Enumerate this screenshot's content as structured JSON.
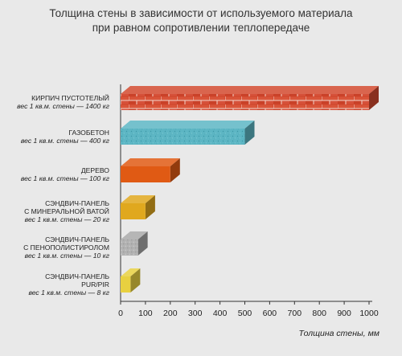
{
  "title": {
    "line1": "Толщина стены в зависимости от используемого материала",
    "line2": "при равном сопротивлении теплопередаче"
  },
  "chart_data": {
    "type": "bar",
    "orientation": "horizontal",
    "title": "Толщина стены в зависимости от используемого материала при равном сопротивлении теплопередаче",
    "xlabel": "Толщина стены, мм",
    "ylabel": "",
    "xlim": [
      0,
      1000
    ],
    "xticks": [
      "0",
      "100",
      "200",
      "300",
      "400",
      "500",
      "600",
      "700",
      "800",
      "900",
      "1000"
    ],
    "categories": [
      {
        "lines": [
          "КИРПИЧ ПУСТОТЕЛЫЙ"
        ],
        "note": "вес 1 кв.м. стены — 1400 кг",
        "value": 1000,
        "color": "#d24a2f",
        "fill": "brick"
      },
      {
        "lines": [
          "ГАЗОБЕТОН"
        ],
        "note": "вес 1 кв.м. стены — 400 кг",
        "value": 500,
        "color": "#5db6c4",
        "fill": "aerated"
      },
      {
        "lines": [
          "ДЕРЕВО"
        ],
        "note": "вес 1 кв.м. стены — 100 кг",
        "value": 200,
        "color": "#e05a14",
        "fill": "wood"
      },
      {
        "lines": [
          "СЭНДВИЧ-ПАНЕЛЬ",
          "С МИНЕРАЛЬНОЙ ВАТОЙ"
        ],
        "note": "вес 1 кв.м. стены — 20 кг",
        "value": 100,
        "color": "#e0a81e",
        "fill": "wool"
      },
      {
        "lines": [
          "СЭНДВИЧ-ПАНЕЛЬ",
          "С ПЕНОПОЛИСТИРОЛОМ"
        ],
        "note": "вес 1 кв.м. стены — 10 кг",
        "value": 70,
        "color": "#a9a9a9",
        "fill": "foam"
      },
      {
        "lines": [
          "СЭНДВИЧ-ПАНЕЛЬ",
          "PUR/PIR"
        ],
        "note": "вес 1 кв.м. стены — 8 кг",
        "value": 40,
        "color": "#e8d040",
        "fill": "pur"
      }
    ],
    "grid": false,
    "legend": "none"
  }
}
